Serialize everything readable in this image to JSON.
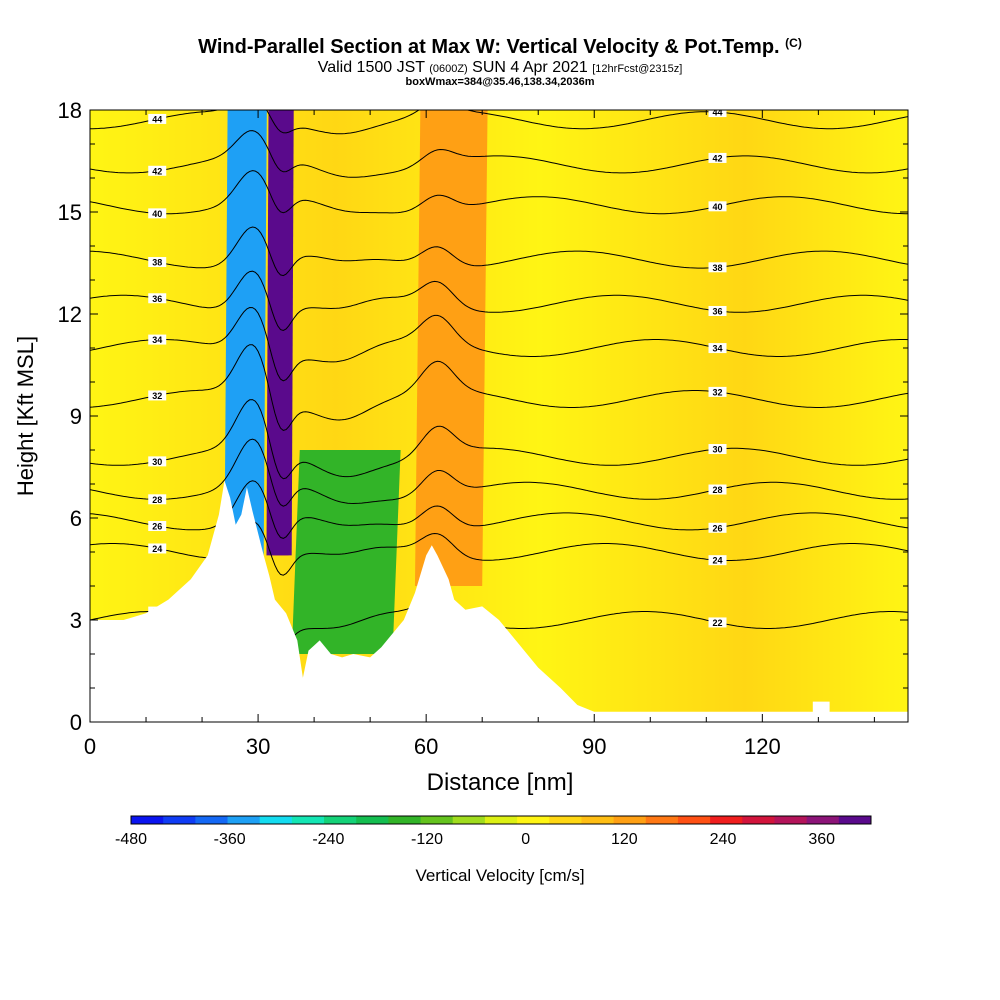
{
  "title": {
    "main": "Wind-Parallel Section at Max W: Vertical Velocity & Pot.Temp.",
    "main_tag": "(C)",
    "valid": "Valid 1500 JST",
    "valid_utc": "(0600Z)",
    "valid_date": "SUN 4 Apr 2021",
    "fcst": "[12hrFcst@2315z]",
    "box": "boxWmax=384@35.46,138.34,2036m"
  },
  "chart_data": {
    "type": "heatmap",
    "xlabel": "Distance [nm]",
    "ylabel": "Height [Kft MSL]",
    "xlim": [
      0,
      146
    ],
    "ylim": [
      0,
      18
    ],
    "xticks": [
      0,
      30,
      60,
      90,
      120
    ],
    "yticks": [
      0,
      3,
      6,
      9,
      12,
      15,
      18
    ],
    "colorbar": {
      "label": "Vertical Velocity [cm/s]",
      "ticks": [
        -480,
        -360,
        -240,
        -120,
        0,
        120,
        240,
        360
      ],
      "min": -480,
      "max": 420,
      "colors": [
        "#0a14f0",
        "#0f3cf5",
        "#1468f5",
        "#1ea0f5",
        "#14dcf0",
        "#14e6b4",
        "#14d278",
        "#14be50",
        "#32b428",
        "#64c31e",
        "#a0dc1e",
        "#dcf014",
        "#fff514",
        "#ffd714",
        "#ffbe14",
        "#ffa014",
        "#ff7814",
        "#ff5014",
        "#f01e1e",
        "#d2143c",
        "#b4145a",
        "#8c1478",
        "#5a0a8c"
      ]
    },
    "terrain": [
      [
        0,
        3
      ],
      [
        3,
        3
      ],
      [
        6,
        3
      ],
      [
        10,
        3.2
      ],
      [
        14,
        3.6
      ],
      [
        18,
        4.2
      ],
      [
        21,
        4.9
      ],
      [
        23,
        6.1
      ],
      [
        24,
        7.1
      ],
      [
        25,
        6.6
      ],
      [
        26,
        5.8
      ],
      [
        27,
        6.1
      ],
      [
        28,
        6.9
      ],
      [
        29,
        6.2
      ],
      [
        31,
        4.9
      ],
      [
        32,
        4.3
      ],
      [
        33,
        3.6
      ],
      [
        35,
        3.2
      ],
      [
        37,
        2.4
      ],
      [
        38,
        1.3
      ],
      [
        39,
        2.1
      ],
      [
        41,
        2.4
      ],
      [
        43,
        2.0
      ],
      [
        45,
        1.9
      ],
      [
        47,
        2.0
      ],
      [
        50,
        1.9
      ],
      [
        52,
        2.2
      ],
      [
        54,
        2.6
      ],
      [
        56,
        3.0
      ],
      [
        58,
        3.8
      ],
      [
        60,
        4.9
      ],
      [
        61,
        5.2
      ],
      [
        62,
        4.9
      ],
      [
        64,
        4.2
      ],
      [
        65,
        3.6
      ],
      [
        67,
        3.3
      ],
      [
        70,
        3.4
      ],
      [
        73,
        3.0
      ],
      [
        76,
        2.4
      ],
      [
        80,
        1.6
      ],
      [
        84,
        1.0
      ],
      [
        87,
        0.5
      ],
      [
        90,
        0.3
      ],
      [
        95,
        0.3
      ],
      [
        105,
        0.3
      ],
      [
        120,
        0.3
      ],
      [
        129,
        0.3
      ],
      [
        129,
        0.6
      ],
      [
        132,
        0.6
      ],
      [
        132,
        0.3
      ],
      [
        146,
        0.3
      ]
    ],
    "w_features": [
      {
        "name": "downdraft-core",
        "x": [
          24,
          31
        ],
        "y": [
          4.9,
          18
        ],
        "w": -330
      },
      {
        "name": "updraft-core",
        "x": [
          31.5,
          36
        ],
        "y": [
          4.9,
          18
        ],
        "w": 390
      },
      {
        "name": "lee-downdraft",
        "x": [
          36,
          54
        ],
        "y": [
          2.0,
          8
        ],
        "w": -150
      },
      {
        "name": "ridge-updraft",
        "x": [
          58,
          70
        ],
        "y": [
          4.0,
          18
        ],
        "w": 140
      }
    ],
    "theta_contours": [
      {
        "label": "22",
        "y": 3.0
      },
      {
        "label": "24",
        "y": 5.0
      },
      {
        "label": "26",
        "y": 5.9
      },
      {
        "label": "28",
        "y": 6.8
      },
      {
        "label": "30",
        "y": 7.8
      },
      {
        "label": "32",
        "y": 9.5
      },
      {
        "label": "34",
        "y": 11.0
      },
      {
        "label": "36",
        "y": 12.3
      },
      {
        "label": "38",
        "y": 13.6
      },
      {
        "label": "40",
        "y": 15.2
      },
      {
        "label": "42",
        "y": 16.4
      },
      {
        "label": "44",
        "y": 17.7
      }
    ]
  }
}
